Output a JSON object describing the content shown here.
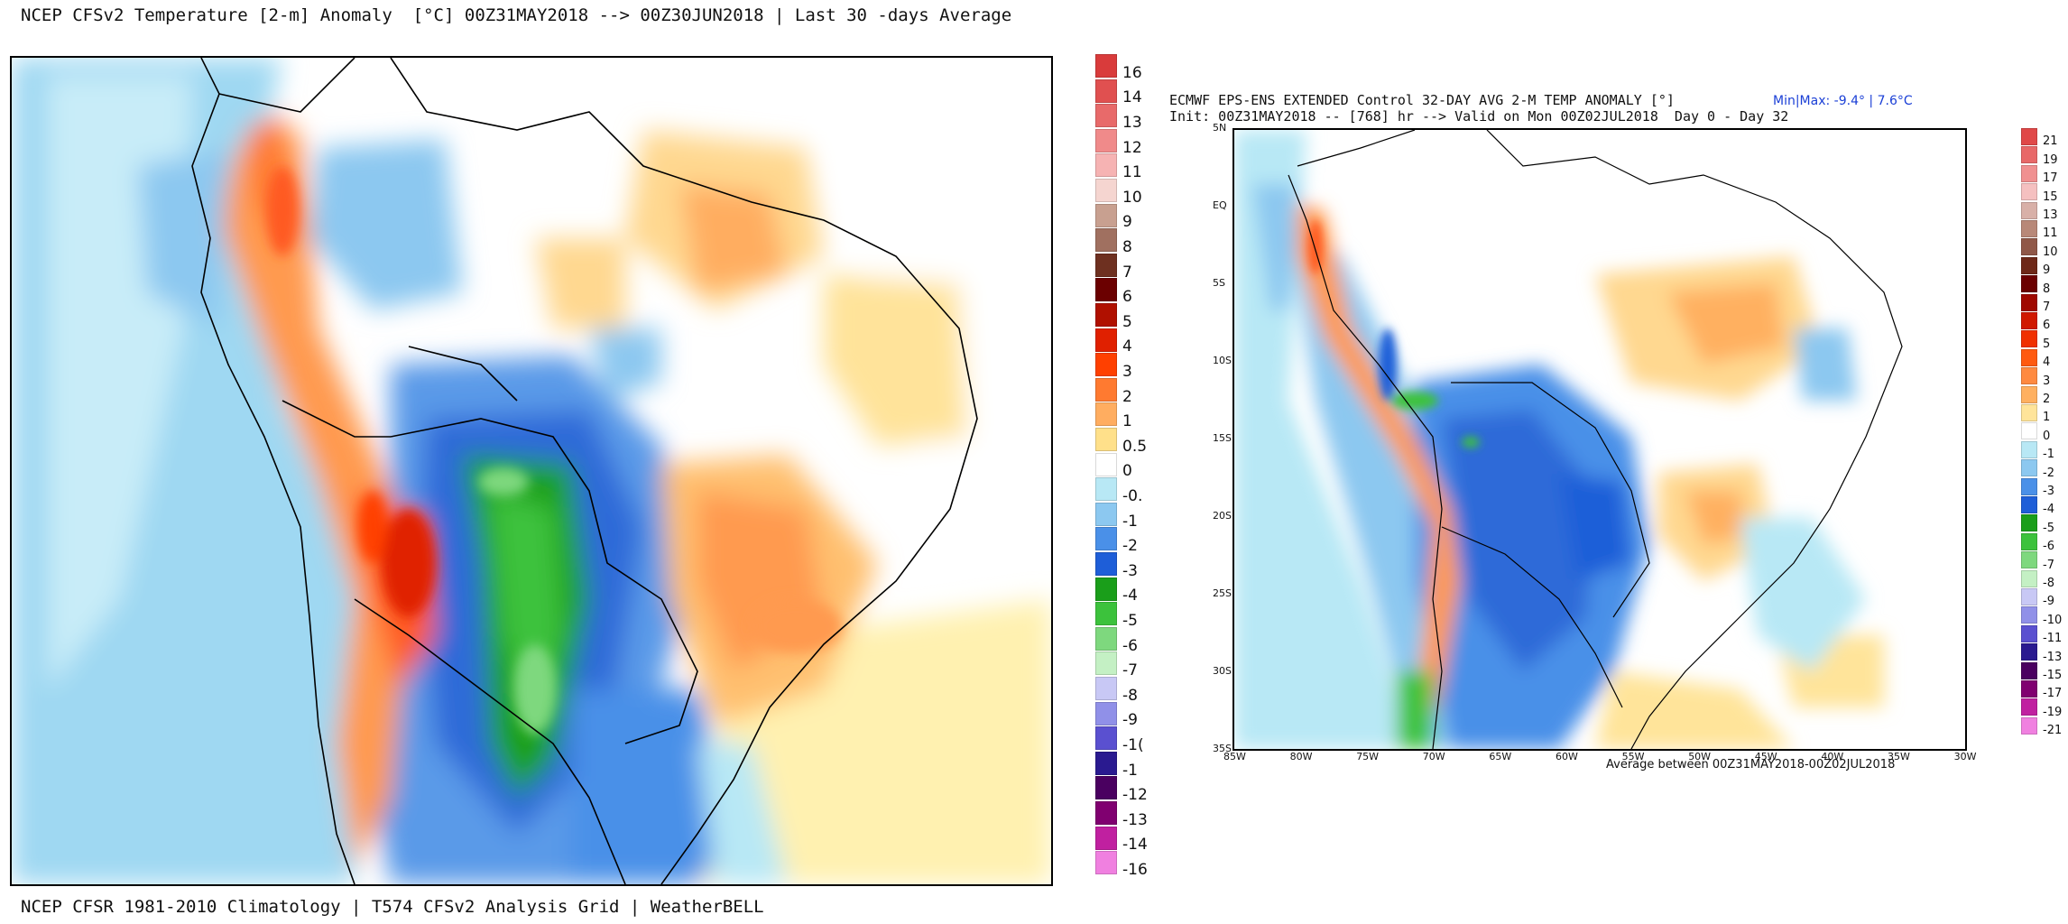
{
  "left_panel": {
    "title": "NCEP CFSv2 Temperature [2-m] Anomaly  [°C] 00Z31MAY2018 --> 00Z30JUN2018 | Last 30 -days Average",
    "footer": "NCEP CFSR 1981-2010 Climatology | T574 CFSv2 Analysis Grid | WeatherBELL",
    "colorbar": [
      {
        "label": "16",
        "color": "#d93b3b"
      },
      {
        "label": "14",
        "color": "#e05050"
      },
      {
        "label": "13",
        "color": "#e86a6a"
      },
      {
        "label": "12",
        "color": "#f08a8a"
      },
      {
        "label": "11",
        "color": "#f6b3b3"
      },
      {
        "label": "10",
        "color": "#f5d5d0"
      },
      {
        "label": "9",
        "color": "#c8a090"
      },
      {
        "label": "8",
        "color": "#a07060"
      },
      {
        "label": "7",
        "color": "#6e3020"
      },
      {
        "label": "6",
        "color": "#6b0000"
      },
      {
        "label": "5",
        "color": "#b01000"
      },
      {
        "label": "4",
        "color": "#e02000"
      },
      {
        "label": "3",
        "color": "#ff4000"
      },
      {
        "label": "2",
        "color": "#ff7a30"
      },
      {
        "label": "1",
        "color": "#ffad60"
      },
      {
        "label": "0.5",
        "color": "#ffe08a"
      },
      {
        "label": "0",
        "color": "#ffffff"
      },
      {
        "label": "-0.",
        "color": "#b8e8f5"
      },
      {
        "label": "-1",
        "color": "#8cc8f0"
      },
      {
        "label": "-2",
        "color": "#4a90e8"
      },
      {
        "label": "-3",
        "color": "#1e5ed8"
      },
      {
        "label": "-4",
        "color": "#1a9e1a"
      },
      {
        "label": "-5",
        "color": "#3cc23c"
      },
      {
        "label": "-6",
        "color": "#7ed87e"
      },
      {
        "label": "-7",
        "color": "#c4f0c4"
      },
      {
        "label": "-8",
        "color": "#c8c8f5"
      },
      {
        "label": "-9",
        "color": "#9090e8"
      },
      {
        "label": "-1(",
        "color": "#5a50d0"
      },
      {
        "label": "-1",
        "color": "#2a1a90"
      },
      {
        "label": "-12",
        "color": "#4a0060"
      },
      {
        "label": "-13",
        "color": "#800070"
      },
      {
        "label": "-14",
        "color": "#c020a0"
      },
      {
        "label": "-16",
        "color": "#f080e0"
      }
    ]
  },
  "right_panel": {
    "title_line1": "ECMWF EPS-ENS EXTENDED Control 32-DAY AVG 2-M TEMP ANOMALY [°]",
    "title_line2": "Init: 00Z31MAY2018 -- [768] hr --> Valid on Mon 00Z02JUL2018  Day 0 - Day 32",
    "minmax": "Min|Max: -9.4° | 7.6°C",
    "average_note": "Average between 00Z31MAY2018-00Z02JUL2018",
    "lat_labels": [
      "5N",
      "EQ",
      "5S",
      "10S",
      "15S",
      "20S",
      "25S",
      "30S",
      "35S"
    ],
    "lon_labels": [
      "85W",
      "80W",
      "75W",
      "70W",
      "65W",
      "60W",
      "55W",
      "50W",
      "45W",
      "40W",
      "35W",
      "30W"
    ],
    "colorbar": [
      {
        "label": "21",
        "color": "#e04848"
      },
      {
        "label": "19",
        "color": "#e86868"
      },
      {
        "label": "17",
        "color": "#f09090"
      },
      {
        "label": "15",
        "color": "#f5c0c0"
      },
      {
        "label": "13",
        "color": "#d8b0a8"
      },
      {
        "label": "11",
        "color": "#b88878"
      },
      {
        "label": "10",
        "color": "#905848"
      },
      {
        "label": "9",
        "color": "#6e2818"
      },
      {
        "label": "8",
        "color": "#6b0000"
      },
      {
        "label": "7",
        "color": "#a00800"
      },
      {
        "label": "6",
        "color": "#d01800"
      },
      {
        "label": "5",
        "color": "#f03000"
      },
      {
        "label": "4",
        "color": "#ff5a10"
      },
      {
        "label": "3",
        "color": "#ff8a40"
      },
      {
        "label": "2",
        "color": "#ffb060"
      },
      {
        "label": "1",
        "color": "#ffe49a"
      },
      {
        "label": "0",
        "color": "#ffffff"
      },
      {
        "label": "-1",
        "color": "#b8e8f5"
      },
      {
        "label": "-2",
        "color": "#8cc8f0"
      },
      {
        "label": "-3",
        "color": "#4a90e8"
      },
      {
        "label": "-4",
        "color": "#1e5ed8"
      },
      {
        "label": "-5",
        "color": "#1a9e1a"
      },
      {
        "label": "-6",
        "color": "#3cc23c"
      },
      {
        "label": "-7",
        "color": "#7ed87e"
      },
      {
        "label": "-8",
        "color": "#c4f0c4"
      },
      {
        "label": "-9",
        "color": "#c8c8f5"
      },
      {
        "label": "-10",
        "color": "#9090e8"
      },
      {
        "label": "-11",
        "color": "#5a50d0"
      },
      {
        "label": "-13",
        "color": "#2a1a90"
      },
      {
        "label": "-15",
        "color": "#4a0060"
      },
      {
        "label": "-17",
        "color": "#800070"
      },
      {
        "label": "-19",
        "color": "#c020a0"
      },
      {
        "label": "-21",
        "color": "#f080e0"
      }
    ]
  }
}
